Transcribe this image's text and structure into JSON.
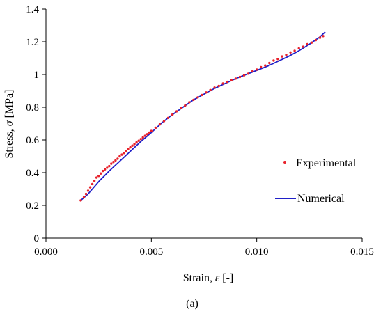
{
  "chart_data": {
    "type": "scatter",
    "xlabel_prefix": "Strain, ",
    "xlabel_symbol": "ε",
    "xlabel_suffix": " [-]",
    "ylabel_prefix": "Stress, ",
    "ylabel_symbol": "σ",
    "ylabel_suffix": " [MPa]",
    "xlim": [
      0.0,
      0.015
    ],
    "ylim": [
      0,
      1.4
    ],
    "x_ticks": [
      "0.000",
      "0.005",
      "0.010",
      "0.015"
    ],
    "x_tick_values": [
      0.0,
      0.005,
      0.01,
      0.015
    ],
    "y_ticks": [
      "0",
      "0.2",
      "0.4",
      "0.6",
      "0.8",
      "1",
      "1.2",
      "1.4"
    ],
    "y_tick_values": [
      0,
      0.2,
      0.4,
      0.6,
      0.8,
      1.0,
      1.2,
      1.4
    ],
    "grid": false,
    "legend_position": "right",
    "caption": "(a)",
    "series": [
      {
        "name": "Experimental",
        "kind": "points",
        "color": "#e8202a",
        "x": [
          0.00165,
          0.0018,
          0.0019,
          0.002,
          0.0021,
          0.0022,
          0.0023,
          0.0024,
          0.0025,
          0.0026,
          0.0027,
          0.0028,
          0.0029,
          0.003,
          0.0031,
          0.0032,
          0.0033,
          0.0034,
          0.0035,
          0.0036,
          0.0037,
          0.0038,
          0.0039,
          0.004,
          0.0041,
          0.0042,
          0.0043,
          0.0044,
          0.0045,
          0.0046,
          0.0047,
          0.0048,
          0.0049,
          0.005,
          0.0052,
          0.0054,
          0.0056,
          0.0058,
          0.006,
          0.0062,
          0.0064,
          0.0066,
          0.0068,
          0.007,
          0.0072,
          0.0074,
          0.0076,
          0.0078,
          0.008,
          0.0082,
          0.0084,
          0.0086,
          0.0088,
          0.009,
          0.0092,
          0.0094,
          0.0096,
          0.0098,
          0.01,
          0.0102,
          0.0104,
          0.0106,
          0.0108,
          0.011,
          0.0112,
          0.0114,
          0.0116,
          0.0118,
          0.012,
          0.0122,
          0.0124,
          0.0126,
          0.0128,
          0.013,
          0.01315
        ],
        "y": [
          0.23,
          0.25,
          0.27,
          0.29,
          0.31,
          0.33,
          0.35,
          0.37,
          0.38,
          0.395,
          0.41,
          0.42,
          0.43,
          0.44,
          0.455,
          0.465,
          0.475,
          0.485,
          0.5,
          0.51,
          0.52,
          0.53,
          0.545,
          0.555,
          0.565,
          0.575,
          0.585,
          0.595,
          0.605,
          0.615,
          0.625,
          0.635,
          0.645,
          0.655,
          0.675,
          0.695,
          0.715,
          0.735,
          0.755,
          0.775,
          0.795,
          0.81,
          0.83,
          0.845,
          0.86,
          0.875,
          0.89,
          0.905,
          0.92,
          0.93,
          0.945,
          0.955,
          0.965,
          0.975,
          0.985,
          0.995,
          1.005,
          1.02,
          1.03,
          1.045,
          1.055,
          1.07,
          1.085,
          1.095,
          1.11,
          1.12,
          1.135,
          1.145,
          1.16,
          1.17,
          1.185,
          1.195,
          1.21,
          1.225,
          1.235
        ]
      },
      {
        "name": "Numerical",
        "kind": "line",
        "color": "#2020c8",
        "x": [
          0.00165,
          0.002,
          0.0025,
          0.003,
          0.0035,
          0.004,
          0.0045,
          0.005,
          0.0055,
          0.006,
          0.0065,
          0.007,
          0.0075,
          0.008,
          0.0085,
          0.009,
          0.0095,
          0.01,
          0.0105,
          0.011,
          0.0115,
          0.012,
          0.0125,
          0.013,
          0.01325
        ],
        "y": [
          0.23,
          0.27,
          0.345,
          0.41,
          0.47,
          0.53,
          0.59,
          0.645,
          0.705,
          0.755,
          0.8,
          0.845,
          0.88,
          0.915,
          0.945,
          0.975,
          1.0,
          1.025,
          1.05,
          1.08,
          1.11,
          1.145,
          1.185,
          1.23,
          1.26
        ]
      }
    ]
  }
}
